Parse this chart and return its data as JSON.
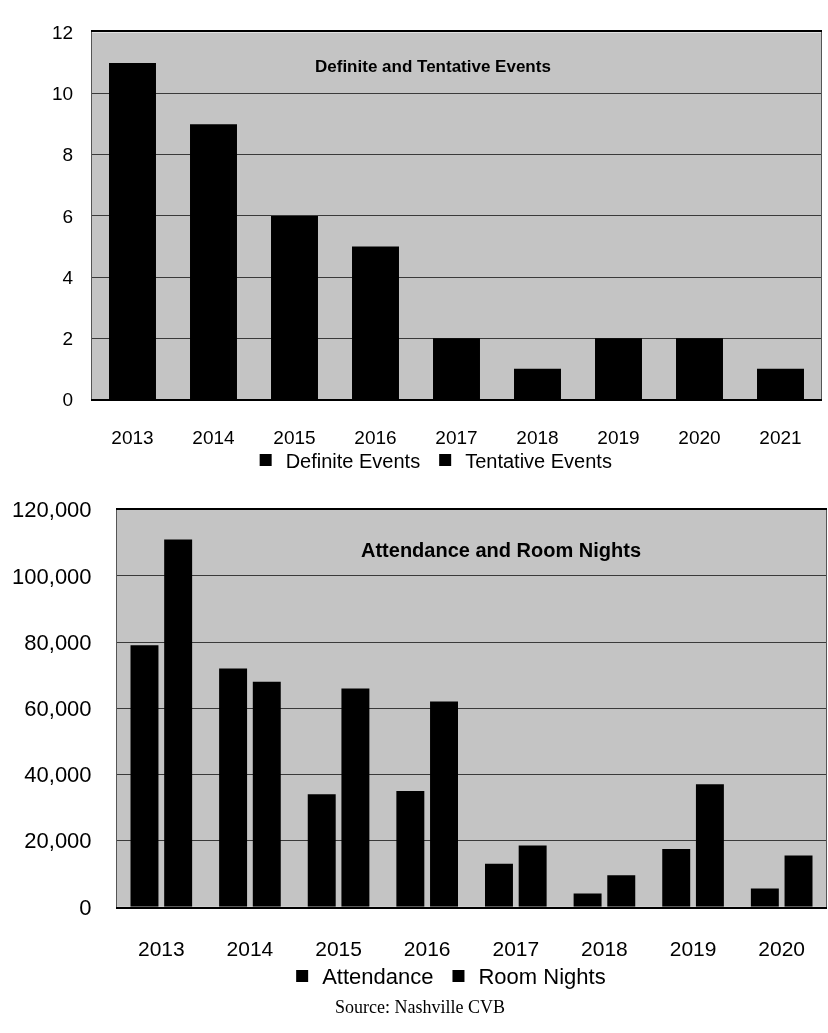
{
  "chart_data": [
    {
      "type": "bar",
      "title": "Definite and Tentative Events",
      "categories": [
        "2013",
        "2014",
        "2015",
        "2016",
        "2017",
        "2018",
        "2019",
        "2020",
        "2021"
      ],
      "series": [
        {
          "name": "Definite Events",
          "color": "#000000",
          "values": [
            11,
            9,
            6,
            5,
            2,
            1,
            2,
            2,
            1
          ]
        },
        {
          "name": "Tentative Events",
          "color": "#000000",
          "values": [
            null,
            null,
            null,
            null,
            null,
            null,
            null,
            null,
            null
          ]
        }
      ],
      "stacked": true,
      "ylim": [
        0,
        12
      ],
      "yticks": [
        0,
        2,
        4,
        6,
        8,
        10,
        12
      ],
      "grid": "y",
      "legend": "bottom"
    },
    {
      "type": "bar",
      "title": "Attendance and Room Nights",
      "categories": [
        "2013",
        "2014",
        "2015",
        "2016",
        "2017",
        "2018",
        "2019",
        "2020"
      ],
      "series": [
        {
          "name": "Attendance",
          "color": "#000000",
          "values": [
            79000,
            72000,
            34000,
            35000,
            13000,
            4000,
            17500,
            5500
          ]
        },
        {
          "name": "Room Nights",
          "color": "#000000",
          "values": [
            111000,
            68000,
            66000,
            62000,
            18500,
            9500,
            37000,
            15500
          ]
        }
      ],
      "ylim": [
        0,
        120000
      ],
      "yticks": [
        0,
        {
          "value": 20000,
          "label": "20,000"
        },
        {
          "value": 40000,
          "label": "40,000"
        },
        {
          "value": 60000,
          "label": "60,000"
        },
        {
          "value": 80000,
          "label": "80,000"
        },
        {
          "value": 100000,
          "label": "100,000"
        },
        {
          "value": 120000,
          "label": "120,000"
        }
      ],
      "grid": "y",
      "legend": "bottom",
      "annotations": [
        "Source: Nashville CVB"
      ]
    }
  ]
}
